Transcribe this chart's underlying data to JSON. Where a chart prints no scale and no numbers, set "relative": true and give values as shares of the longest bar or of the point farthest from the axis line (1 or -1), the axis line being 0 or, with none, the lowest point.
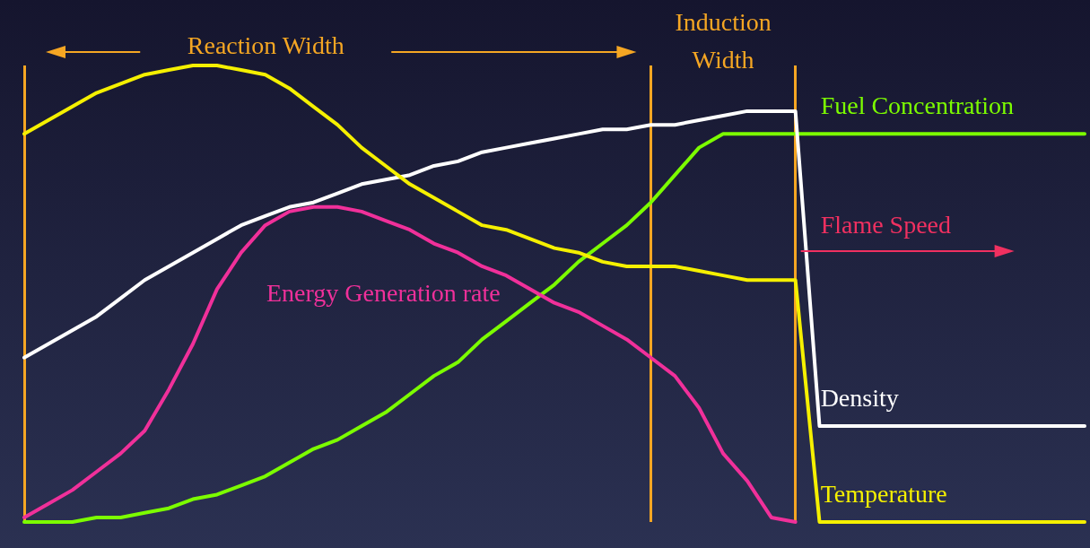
{
  "chart_data": {
    "type": "line",
    "relative": true,
    "legend": false,
    "grid": "x",
    "marker": "none",
    "line_style": "solid",
    "categories": [
      null,
      null,
      null,
      null,
      null,
      null,
      null,
      null,
      null,
      null,
      null,
      null,
      null,
      null,
      null,
      null,
      null,
      null,
      null,
      null,
      null,
      null,
      null,
      null,
      null,
      null,
      null,
      null,
      null,
      null,
      null,
      null,
      null,
      null,
      null,
      null,
      null,
      null,
      null,
      null,
      null,
      null,
      null,
      null,
      null
    ],
    "series": [
      {
        "name": "Fuel Concentration",
        "color": "#7cfc00",
        "values": [
          0,
          0,
          0,
          0.01,
          0.01,
          0.02,
          0.03,
          0.05,
          0.06,
          0.08,
          0.1,
          0.13,
          0.16,
          0.18,
          0.21,
          0.24,
          0.28,
          0.32,
          0.35,
          0.4,
          0.44,
          0.48,
          0.52,
          0.57,
          0.61,
          0.65,
          0.7,
          0.76,
          0.82,
          0.85,
          0.85,
          0.85,
          0.85,
          0.85,
          0.85,
          0.85,
          0.85,
          0.85,
          0.85,
          0.85,
          0.85,
          0.85,
          0.85,
          0.85,
          0.85
        ]
      },
      {
        "name": "Density",
        "color": "#ffffff",
        "values": [
          0.36,
          0.39,
          0.42,
          0.45,
          0.49,
          0.53,
          0.56,
          0.59,
          0.62,
          0.65,
          0.67,
          0.69,
          0.7,
          0.72,
          0.74,
          0.75,
          0.76,
          0.78,
          0.79,
          0.81,
          0.82,
          0.83,
          0.84,
          0.85,
          0.86,
          0.86,
          0.87,
          0.87,
          0.88,
          0.89,
          0.9,
          0.9,
          0.9,
          0.21,
          0.21,
          0.21,
          0.21,
          0.21,
          0.21,
          0.21,
          0.21,
          0.21,
          0.21,
          0.21,
          0.21
        ]
      },
      {
        "name": "Temperature",
        "color": "#f5f000",
        "values": [
          0.85,
          0.88,
          0.91,
          0.94,
          0.96,
          0.98,
          0.99,
          1,
          1,
          0.99,
          0.98,
          0.95,
          0.91,
          0.87,
          0.82,
          0.78,
          0.74,
          0.71,
          0.68,
          0.65,
          0.64,
          0.62,
          0.6,
          0.59,
          0.57,
          0.56,
          0.56,
          0.56,
          0.55,
          0.54,
          0.53,
          0.53,
          0.53,
          0,
          0,
          0,
          0,
          0,
          0,
          0,
          0,
          0,
          0,
          0,
          0
        ]
      },
      {
        "name": "Energy Generation rate",
        "color": "#f0309a",
        "values": [
          0.01,
          0.04,
          0.07,
          0.11,
          0.15,
          0.2,
          0.29,
          0.39,
          0.51,
          0.59,
          0.65,
          0.68,
          0.69,
          0.69,
          0.68,
          0.66,
          0.64,
          0.61,
          0.59,
          0.56,
          0.54,
          0.51,
          0.48,
          0.46,
          0.43,
          0.4,
          0.36,
          0.32,
          0.25,
          0.15,
          0.09,
          0.01,
          0,
          null,
          null,
          null,
          null,
          null,
          null,
          null,
          null,
          null,
          null,
          null,
          null
        ]
      }
    ],
    "annotations": [
      "Reaction Width",
      "Induction Width",
      "Flame Speed"
    ]
  }
}
